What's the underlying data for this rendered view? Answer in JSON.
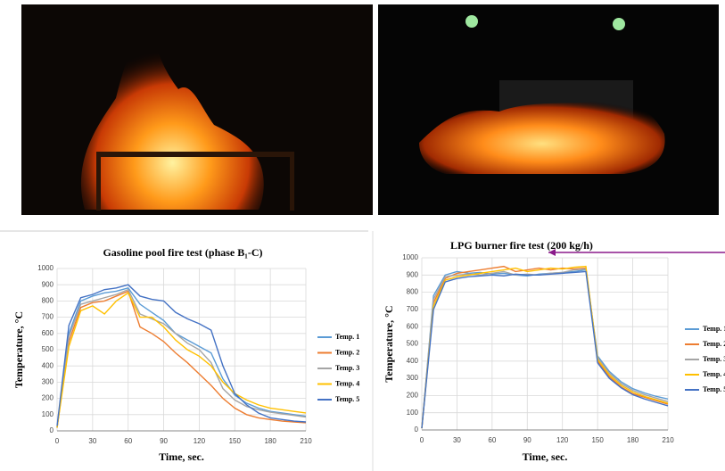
{
  "chart_data": [
    {
      "type": "line",
      "title": "Gasoline pool fire test (phase B₁-C)",
      "x_label": "Time, sec.",
      "y_label": "Temperature, °C",
      "x": [
        0,
        10,
        20,
        30,
        40,
        50,
        60,
        70,
        80,
        90,
        100,
        110,
        120,
        130,
        140,
        150,
        160,
        170,
        180,
        190,
        200,
        210
      ],
      "series": [
        {
          "name": "Temp. 1",
          "color": "#5b9bd5",
          "values": [
            20,
            600,
            800,
            830,
            850,
            860,
            880,
            780,
            730,
            680,
            600,
            560,
            520,
            480,
            320,
            220,
            170,
            140,
            120,
            110,
            100,
            90
          ]
        },
        {
          "name": "Temp. 2",
          "color": "#ed7d31",
          "values": [
            20,
            550,
            760,
            790,
            800,
            830,
            860,
            640,
            600,
            550,
            480,
            420,
            350,
            280,
            200,
            140,
            100,
            80,
            70,
            60,
            55,
            50
          ]
        },
        {
          "name": "Temp. 3",
          "color": "#a5a5a5",
          "values": [
            20,
            580,
            780,
            800,
            820,
            840,
            870,
            720,
            690,
            660,
            600,
            540,
            500,
            420,
            260,
            190,
            150,
            130,
            115,
            105,
            95,
            85
          ]
        },
        {
          "name": "Temp. 4",
          "color": "#ffc000",
          "values": [
            20,
            520,
            740,
            770,
            720,
            800,
            850,
            700,
            700,
            640,
            560,
            500,
            460,
            400,
            300,
            230,
            190,
            160,
            140,
            130,
            120,
            110
          ]
        },
        {
          "name": "Temp. 5",
          "color": "#4472c4",
          "values": [
            30,
            650,
            820,
            840,
            870,
            880,
            900,
            830,
            810,
            800,
            730,
            690,
            660,
            620,
            400,
            230,
            160,
            110,
            80,
            70,
            60,
            55
          ]
        }
      ],
      "xlim": [
        0,
        210
      ],
      "ylim": [
        0,
        1000
      ],
      "xticks": [
        0,
        30,
        60,
        90,
        120,
        150,
        180,
        210
      ],
      "yticks": [
        0,
        100,
        200,
        300,
        400,
        500,
        600,
        700,
        800,
        900,
        1000
      ],
      "grid": true,
      "legend": "right"
    },
    {
      "type": "line",
      "title": "LPG burner fire test (200 kg/h)",
      "x_label": "Time, sec.",
      "y_label": "Temperature, °C",
      "x": [
        0,
        10,
        20,
        30,
        40,
        50,
        60,
        70,
        80,
        90,
        100,
        110,
        120,
        130,
        140,
        150,
        160,
        170,
        180,
        190,
        200,
        210
      ],
      "series": [
        {
          "name": "Temp. 1",
          "color": "#5b9bd5",
          "values": [
            10,
            780,
            900,
            920,
            910,
            915,
            905,
            910,
            900,
            895,
            905,
            910,
            915,
            920,
            930,
            430,
            340,
            280,
            240,
            215,
            195,
            180
          ]
        },
        {
          "name": "Temp. 2",
          "color": "#ed7d31",
          "values": [
            10,
            740,
            880,
            910,
            920,
            930,
            940,
            950,
            920,
            930,
            940,
            930,
            940,
            935,
            940,
            400,
            310,
            250,
            210,
            190,
            170,
            150
          ]
        },
        {
          "name": "Temp. 3",
          "color": "#a5a5a5",
          "values": [
            10,
            760,
            890,
            900,
            905,
            900,
            910,
            920,
            900,
            905,
            900,
            910,
            915,
            930,
            935,
            420,
            330,
            270,
            230,
            205,
            185,
            165
          ]
        },
        {
          "name": "Temp. 4",
          "color": "#ffc000",
          "values": [
            10,
            720,
            870,
            890,
            900,
            910,
            920,
            930,
            940,
            920,
            930,
            940,
            935,
            945,
            950,
            410,
            320,
            260,
            220,
            195,
            175,
            155
          ]
        },
        {
          "name": "Temp. 5",
          "color": "#4472c4",
          "values": [
            10,
            700,
            860,
            880,
            890,
            895,
            900,
            895,
            905,
            900,
            900,
            905,
            910,
            915,
            920,
            390,
            300,
            245,
            205,
            180,
            160,
            140
          ]
        }
      ],
      "xlim": [
        0,
        210
      ],
      "ylim": [
        0,
        1000
      ],
      "xticks": [
        0,
        30,
        60,
        90,
        120,
        150,
        180,
        210
      ],
      "yticks": [
        0,
        100,
        200,
        300,
        400,
        500,
        600,
        700,
        800,
        900,
        1000
      ],
      "grid": true,
      "legend": "right"
    }
  ]
}
